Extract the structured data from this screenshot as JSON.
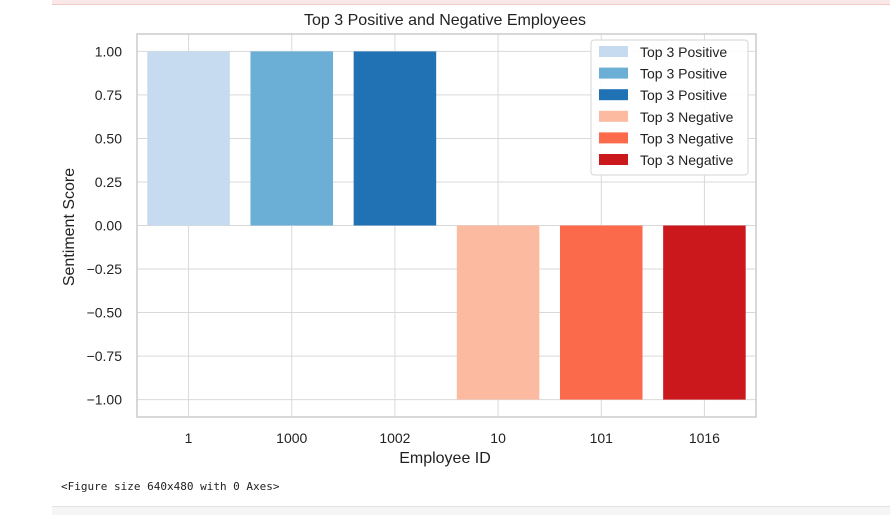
{
  "output_text": "<Figure size 640x480 with 0 Axes>",
  "chart_data": {
    "type": "bar",
    "title": "Top 3 Positive and Negative Employees",
    "xlabel": "Employee ID",
    "ylabel": "Sentiment Score",
    "categories": [
      "1",
      "1000",
      "1002",
      "10",
      "101",
      "1016"
    ],
    "values": [
      1,
      1,
      1,
      -1,
      -1,
      -1
    ],
    "colors": [
      "#c6dbef",
      "#6baed6",
      "#2171b5",
      "#fcbba1",
      "#fb6a4a",
      "#cb181d"
    ],
    "ylim": [
      -1.1,
      1.1
    ],
    "yticks": [
      1.0,
      0.75,
      0.5,
      0.25,
      0.0,
      -0.25,
      -0.5,
      -0.75,
      -1.0
    ],
    "ytick_labels": [
      "1.00",
      "0.75",
      "0.50",
      "0.25",
      "0.00",
      "−0.25",
      "−0.50",
      "−0.75",
      "−1.00"
    ],
    "grid": true,
    "legend_position": "top-right",
    "legend": [
      {
        "label": "Top 3 Positive",
        "color": "#c6dbef"
      },
      {
        "label": "Top 3 Positive",
        "color": "#6baed6"
      },
      {
        "label": "Top 3 Positive",
        "color": "#2171b5"
      },
      {
        "label": "Top 3 Negative",
        "color": "#fcbba1"
      },
      {
        "label": "Top 3 Negative",
        "color": "#fb6a4a"
      },
      {
        "label": "Top 3 Negative",
        "color": "#cb181d"
      }
    ]
  }
}
